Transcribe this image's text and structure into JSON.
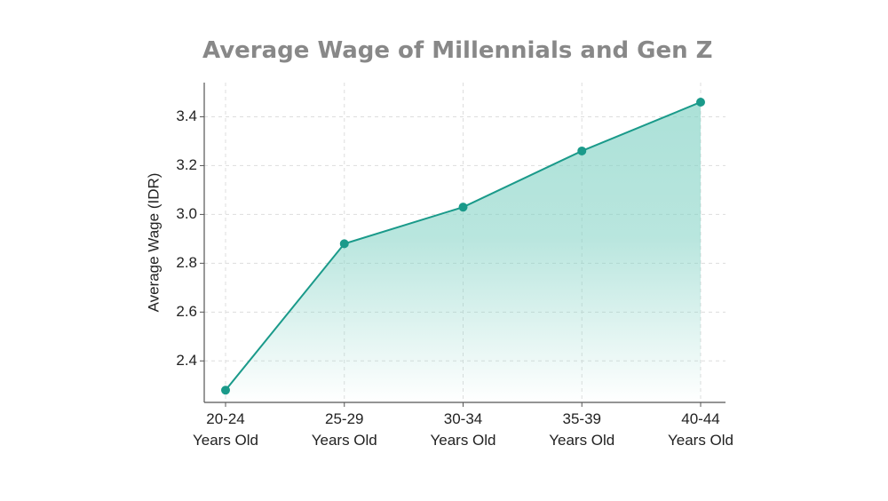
{
  "chart_data": {
    "type": "area",
    "title": "Average Wage of Millennials and Gen Z",
    "xlabel": "",
    "ylabel": "Average Wage (IDR)",
    "categories": [
      [
        "20-24",
        "Years Old"
      ],
      [
        "25-29",
        "Years Old"
      ],
      [
        "30-34",
        "Years Old"
      ],
      [
        "35-39",
        "Years Old"
      ],
      [
        "40-44",
        "Years Old"
      ]
    ],
    "series": [
      {
        "values": [
          2.28,
          2.88,
          3.03,
          3.26,
          3.46
        ]
      }
    ],
    "yticks": [
      2.4,
      2.6,
      2.8,
      3.0,
      3.2,
      3.4
    ],
    "ylim": [
      2.23,
      3.54
    ],
    "grid": true,
    "colors": {
      "line": "#1a9a8a",
      "fill": "#7fd1c3",
      "grid": "#dddddd",
      "axis": "#555555"
    }
  }
}
